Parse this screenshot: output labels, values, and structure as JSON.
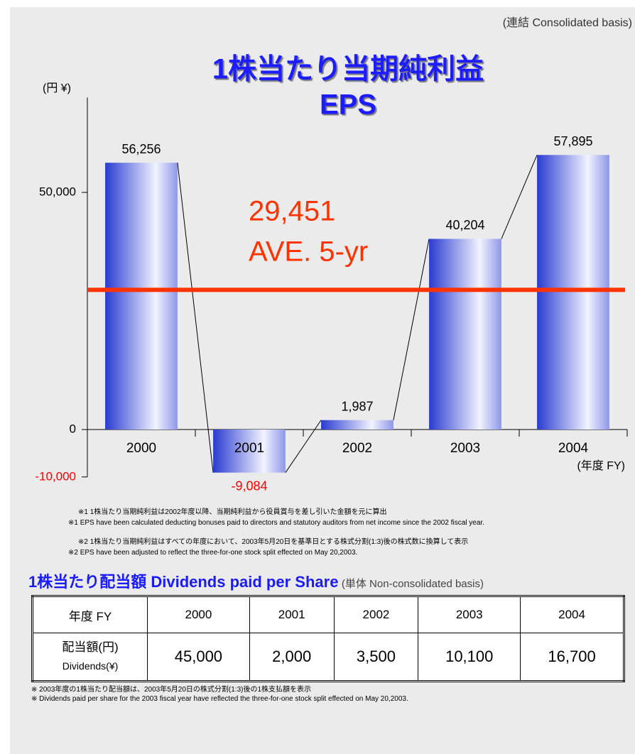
{
  "chart_data": {
    "type": "bar",
    "basis": "(連結  Consolidated basis)",
    "title": "1株当たり当期純利益",
    "title_en": "EPS",
    "y_label": "(円 ¥)",
    "x_label": "(年度 FY)",
    "categories": [
      "2000",
      "2001",
      "2002",
      "2003",
      "2004"
    ],
    "values": [
      56256,
      -9084,
      1987,
      40204,
      57895
    ],
    "value_labels": [
      "56,256",
      "-9,084",
      "1,987",
      "40,204",
      "57,895"
    ],
    "color": "#2a3bd0",
    "ylim": [
      -10000,
      70000
    ],
    "yticks": [
      {
        "value": -10000,
        "label": "-10,000"
      },
      0,
      {
        "value": 50000,
        "label": "50,000"
      }
    ],
    "average": {
      "value": 29451,
      "label": "29,451",
      "text": "AVE. 5-yr",
      "color": "#ff3300"
    }
  },
  "notes": [
    "※1  1株当たり当期純利益は2002年度以降、当期純利益から役員賞与を差し引いた金額を元に算出",
    "※1  EPS have been calculated deducting bonuses paid to directors and statutory auditors from net income since the 2002 fiscal year.",
    "※2  1株当たり当期純利益はすべての年度において、2003年5月20日を基準日とする株式分割(1:3)後の株式数に換算して表示",
    "※2   EPS have been adjusted to reflect  the three-for-one stock split effected on May 20,2003."
  ],
  "dividends": {
    "title": "1株当たり配当額   Dividends paid per Share",
    "basis": "(単体  Non-consolidated basis)",
    "header": [
      "年度 FY",
      "2000",
      "2001",
      "2002",
      "2003",
      "2004"
    ],
    "row_label": [
      "配当額(円)",
      "Dividends(¥)"
    ],
    "row": [
      "45,000",
      "2,000",
      "3,500",
      "10,100",
      "16,700"
    ],
    "notes": [
      "※  2003年度の1株当たり配当額は、2003年5月20日の株式分割(1:3)後の1株支払額を表示",
      "※  Dividends paid per share for  the 2003 fiscal year have reflected the three-for-one stock split effected on May 20,2003."
    ]
  }
}
